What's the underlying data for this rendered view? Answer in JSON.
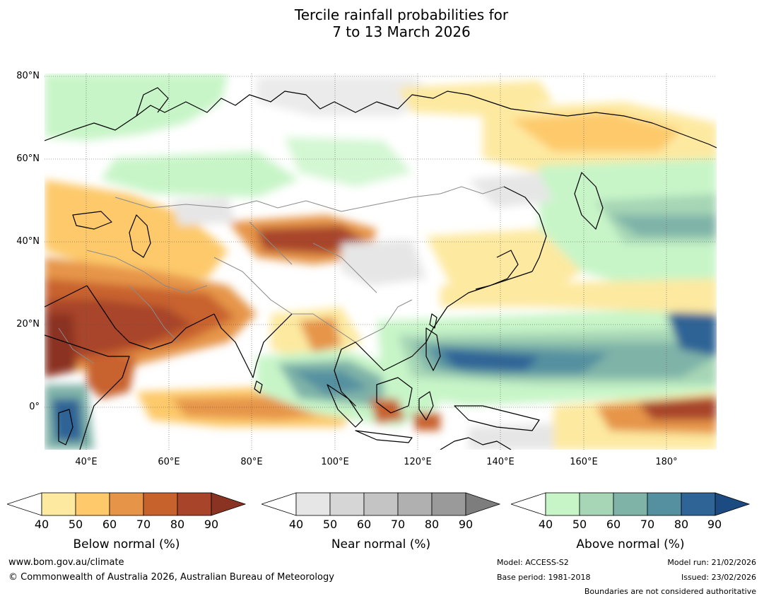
{
  "header": {
    "title_line1": "Tercile rainfall probabilities for",
    "title_line2": "7 to 13 March 2026"
  },
  "map": {
    "lat_labels": [
      "80°N",
      "60°N",
      "40°N",
      "20°N",
      "0°"
    ],
    "lon_labels": [
      "40°E",
      "60°E",
      "80°E",
      "100°E",
      "120°E",
      "140°E",
      "160°E",
      "180°"
    ]
  },
  "colorbars": [
    {
      "title": "Below normal (%)",
      "ticks": [
        "40",
        "50",
        "60",
        "70",
        "80",
        "90"
      ],
      "colors": [
        "#ffffff",
        "#fde9a0",
        "#fdc96a",
        "#e69548",
        "#c8622d",
        "#a8442a",
        "#8b3322"
      ]
    },
    {
      "title": "Near normal (%)",
      "ticks": [
        "40",
        "50",
        "60",
        "70",
        "80",
        "90"
      ],
      "colors": [
        "#ffffff",
        "#e6e6e6",
        "#d6d6d6",
        "#c4c4c4",
        "#b0b0b0",
        "#9a9a9a",
        "#7d7d7d"
      ]
    },
    {
      "title": "Above normal (%)",
      "ticks": [
        "40",
        "50",
        "60",
        "70",
        "80",
        "90"
      ],
      "colors": [
        "#ffffff",
        "#c8f5c8",
        "#a6d6b5",
        "#7fb3a8",
        "#5590a0",
        "#2f6496",
        "#1b4b80"
      ]
    }
  ],
  "footer": {
    "website": "www.bom.gov.au/climate",
    "copyright": "© Commonwealth of Australia 2026, Australian Bureau of Meteorology",
    "model": "Model: ACCESS-S2",
    "base_period": "Base period: 1981-2018",
    "model_run": "Model run: 21/02/2026",
    "issued": "Issued: 23/02/2026",
    "disclaimer": "Boundaries are not considered authoritative"
  }
}
